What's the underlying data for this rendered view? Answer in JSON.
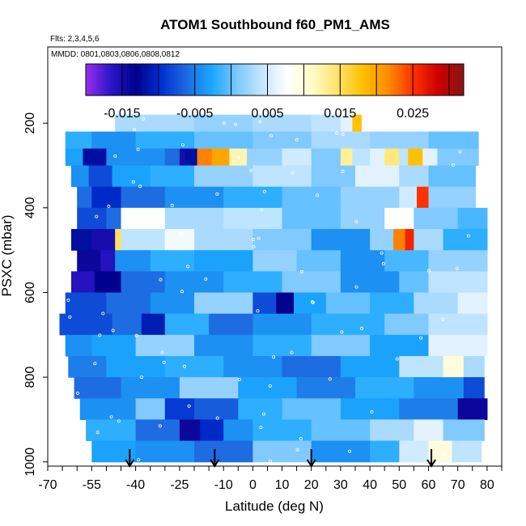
{
  "chart_data": {
    "type": "heatmap",
    "title": "ATOM1 Southbound f60_PM1_AMS",
    "flights_label": "Flts: 2,3,4,5,6",
    "dates_label": "MMDD: 0801,0803,0806,0808,0812",
    "xlabel": "Latitude (deg N)",
    "ylabel": "PSXC (mbar)",
    "xlim": [
      -70,
      85
    ],
    "ylim": [
      1010,
      20
    ],
    "x_ticks": [
      -70,
      -55,
      -40,
      -25,
      -10,
      0,
      10,
      20,
      30,
      40,
      50,
      60,
      70,
      80
    ],
    "x_tick_labels": [
      "-70",
      "-55",
      "-40",
      "-25",
      "-10",
      "0",
      "10",
      "20",
      "30",
      "40",
      "50",
      "60",
      "70",
      "80"
    ],
    "y_ticks": [
      200,
      400,
      600,
      800,
      1000
    ],
    "y_tick_labels": [
      "200",
      "400",
      "600",
      "800",
      "1000"
    ],
    "colorbar": {
      "range": [
        -0.02,
        0.032
      ],
      "ticks": [
        -0.015,
        -0.005,
        0.005,
        0.015,
        0.025
      ],
      "tick_labels": [
        "-0.015",
        "-0.005",
        "0.005",
        "0.015",
        "0.025"
      ],
      "palette": [
        "#9b2cf0",
        "#2b16c8",
        "#00008b",
        "#0030d0",
        "#1e6ae0",
        "#1aa8ff",
        "#7cc8ff",
        "#c4e6ff",
        "#ffffff",
        "#fffbc8",
        "#ffe36a",
        "#ffc000",
        "#ff8c00",
        "#ff3000",
        "#cc0000",
        "#8b1515"
      ]
    },
    "arrow_latitudes": [
      -42,
      -13,
      20,
      61
    ],
    "layers": [
      {
        "p_top": 180,
        "p_bot": 220,
        "x_start": -47,
        "x_end": 37,
        "breaks": [
          -47,
          -20,
          0,
          20,
          30,
          34,
          37
        ],
        "values": [
          0.003,
          0.002,
          0.003,
          0.004,
          0.006,
          0.018
        ]
      },
      {
        "p_top": 220,
        "p_bot": 260,
        "x_start": -64,
        "x_end": 77,
        "breaks": [
          -64,
          -55,
          -40,
          -20,
          0,
          20,
          40,
          60,
          77
        ],
        "values": [
          -0.002,
          -0.004,
          -0.002,
          0.0,
          0.001,
          0.003,
          0.002,
          0.0
        ]
      },
      {
        "p_top": 260,
        "p_bot": 300,
        "x_start": -64,
        "x_end": 77,
        "breaks": [
          -64,
          -58,
          -50,
          -30,
          -25,
          -23,
          -19,
          -14,
          -8,
          -2,
          10,
          20,
          30,
          34,
          40,
          45,
          50,
          53,
          58,
          63,
          77
        ],
        "values": [
          -0.003,
          -0.012,
          -0.004,
          -0.006,
          -0.015,
          -0.012,
          0.022,
          0.02,
          0.012,
          0.002,
          0.005,
          0.001,
          0.013,
          0.004,
          0.006,
          0.014,
          0.004,
          0.018,
          0.006,
          0.001
        ]
      },
      {
        "p_top": 300,
        "p_bot": 350,
        "x_start": -62,
        "x_end": 76,
        "breaks": [
          -62,
          -56,
          -48,
          -35,
          -20,
          0,
          20,
          35,
          50,
          60,
          76
        ],
        "values": [
          -0.004,
          -0.008,
          -0.003,
          -0.002,
          0.002,
          0.004,
          0.001,
          0.006,
          0.003,
          0.0
        ]
      },
      {
        "p_top": 350,
        "p_bot": 400,
        "x_start": -60,
        "x_end": 76,
        "breaks": [
          -60,
          -55,
          -45,
          -30,
          -10,
          10,
          30,
          50,
          56,
          60,
          76
        ],
        "values": [
          -0.006,
          -0.01,
          -0.006,
          -0.004,
          -0.002,
          0.0,
          0.002,
          0.005,
          0.025,
          0.002
        ]
      },
      {
        "p_top": 400,
        "p_bot": 450,
        "x_start": -60,
        "x_end": 80,
        "breaks": [
          -60,
          -50,
          -45,
          -30,
          -10,
          10,
          30,
          45,
          55,
          70,
          80
        ],
        "values": [
          -0.008,
          -0.006,
          0.008,
          0.003,
          0.004,
          0.0,
          0.002,
          0.008,
          0.001,
          -0.001
        ]
      },
      {
        "p_top": 450,
        "p_bot": 500,
        "x_start": -62,
        "x_end": 80,
        "breaks": [
          -62,
          -55,
          -47,
          -45,
          -30,
          -20,
          0,
          20,
          40,
          48,
          52,
          55,
          65,
          80
        ],
        "values": [
          -0.012,
          -0.015,
          0.015,
          0.004,
          0.007,
          0.003,
          0.001,
          -0.004,
          0.002,
          0.022,
          0.026,
          0.003,
          -0.002
        ]
      },
      {
        "p_top": 500,
        "p_bot": 550,
        "x_start": -60,
        "x_end": 80,
        "breaks": [
          -60,
          -52,
          -47,
          -35,
          -20,
          0,
          15,
          30,
          45,
          60,
          80
        ],
        "values": [
          -0.014,
          -0.016,
          -0.004,
          -0.002,
          -0.003,
          0.002,
          0.0,
          -0.004,
          -0.001,
          0.002
        ]
      },
      {
        "p_top": 550,
        "p_bot": 600,
        "x_start": -62,
        "x_end": 80,
        "breaks": [
          -62,
          -54,
          -45,
          -30,
          -10,
          10,
          30,
          50,
          60,
          80
        ],
        "values": [
          -0.016,
          -0.013,
          -0.006,
          -0.004,
          -0.002,
          0.001,
          -0.004,
          0.0,
          0.004
        ]
      },
      {
        "p_top": 600,
        "p_bot": 650,
        "x_start": -64,
        "x_end": 80,
        "breaks": [
          -64,
          -50,
          -35,
          -20,
          0,
          8,
          14,
          25,
          40,
          55,
          70,
          80
        ],
        "values": [
          -0.008,
          -0.006,
          -0.004,
          0.002,
          -0.008,
          -0.013,
          -0.003,
          0.0,
          -0.002,
          0.003,
          0.006
        ]
      },
      {
        "p_top": 650,
        "p_bot": 700,
        "x_start": -66,
        "x_end": 80,
        "breaks": [
          -66,
          -48,
          -38,
          -30,
          -15,
          0,
          20,
          45,
          60,
          80
        ],
        "values": [
          -0.008,
          -0.006,
          -0.011,
          -0.002,
          -0.006,
          -0.004,
          -0.002,
          0.001,
          0.004
        ]
      },
      {
        "p_top": 700,
        "p_bot": 750,
        "x_start": -64,
        "x_end": 80,
        "breaks": [
          -64,
          -55,
          -40,
          -20,
          0,
          20,
          40,
          60,
          80
        ],
        "values": [
          -0.004,
          -0.003,
          0.002,
          -0.004,
          -0.002,
          0.001,
          -0.003,
          0.006
        ]
      },
      {
        "p_top": 750,
        "p_bot": 800,
        "x_start": -63,
        "x_end": 79,
        "breaks": [
          -63,
          -50,
          -30,
          -10,
          10,
          30,
          50,
          65,
          72,
          79
        ],
        "values": [
          -0.005,
          -0.003,
          -0.002,
          -0.004,
          -0.006,
          -0.003,
          0.004,
          0.01,
          0.003
        ]
      },
      {
        "p_top": 800,
        "p_bot": 850,
        "x_start": -61,
        "x_end": 79,
        "breaks": [
          -61,
          -45,
          -25,
          -5,
          15,
          35,
          55,
          72,
          79
        ],
        "values": [
          -0.006,
          -0.004,
          0.002,
          -0.003,
          -0.005,
          -0.002,
          -0.004,
          -0.008
        ]
      },
      {
        "p_top": 850,
        "p_bot": 900,
        "x_start": -59,
        "x_end": 80,
        "breaks": [
          -59,
          -40,
          -30,
          -20,
          -5,
          10,
          30,
          50,
          70,
          80
        ],
        "values": [
          -0.004,
          0.001,
          -0.009,
          -0.007,
          -0.002,
          0.0,
          -0.003,
          -0.005,
          -0.014
        ]
      },
      {
        "p_top": 900,
        "p_bot": 950,
        "x_start": -57,
        "x_end": 79,
        "breaks": [
          -57,
          -40,
          -25,
          -18,
          -10,
          0,
          20,
          40,
          55,
          65,
          79
        ],
        "values": [
          -0.002,
          -0.006,
          -0.014,
          -0.01,
          -0.004,
          -0.002,
          0.0,
          0.003,
          0.006,
          0.001
        ]
      },
      {
        "p_top": 950,
        "p_bot": 1000,
        "x_start": -55,
        "x_end": 78,
        "breaks": [
          -55,
          -40,
          -20,
          0,
          20,
          40,
          50,
          60,
          68,
          78
        ],
        "values": [
          -0.003,
          -0.004,
          -0.006,
          0.001,
          -0.004,
          -0.002,
          0.005,
          0.01,
          0.004
        ]
      }
    ]
  }
}
